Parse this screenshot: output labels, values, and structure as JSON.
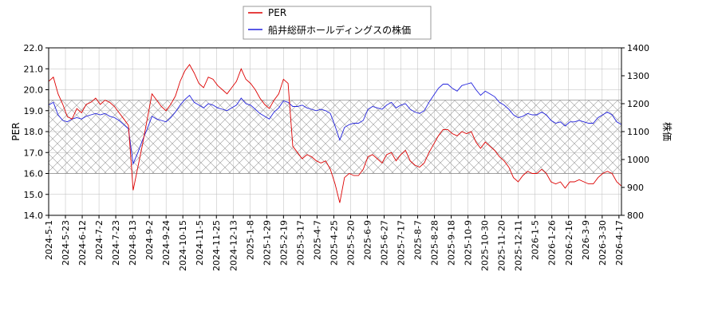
{
  "chart_data": {
    "type": "line",
    "title": "",
    "colors": {
      "per": "#dd0000",
      "price": "#2222dd",
      "grid": "#bbbbbb",
      "band": "#999999"
    },
    "legend": {
      "position": "top-center",
      "entries": [
        "PER",
        "船井総研ホールディングスの株価"
      ]
    },
    "y_left": {
      "label": "PER",
      "range": [
        14.0,
        22.0
      ],
      "ticks": [
        "14.0",
        "15.0",
        "16.0",
        "17.0",
        "18.0",
        "19.0",
        "20.0",
        "21.0",
        "22.0"
      ]
    },
    "y_right": {
      "label": "株価",
      "range": [
        800,
        1400
      ],
      "ticks": [
        "800",
        "900",
        "1000",
        "1100",
        "1200",
        "1300",
        "1400"
      ]
    },
    "grid": true,
    "shaded_band": {
      "axis": "left",
      "range": [
        16.0,
        19.5
      ]
    },
    "x_ticks": [
      "2024-5-1",
      "2024-5-23",
      "2024-6-12",
      "2024-7-2",
      "2024-7-23",
      "2024-8-13",
      "2024-9-2",
      "2024-9-24",
      "2024-10-15",
      "2024-11-5",
      "2024-11-25",
      "2024-12-13",
      "2025-1-8",
      "2025-1-29",
      "2025-2-19",
      "2025-3-17",
      "2025-4-7",
      "2025-4-25",
      "2025-5-20",
      "2025-6-9",
      "2025-6-27",
      "2025-7-17",
      "2025-8-7",
      "2025-8-28",
      "2025-9-18",
      "2025-10-9",
      "2025-10-30",
      "2025-11-20",
      "2025-12-11",
      "2026-1-5",
      "2026-1-26",
      "2026-2-16",
      "2026-3-9",
      "2026-3-30",
      "2026-4-17"
    ],
    "series": [
      {
        "name": "PER",
        "axis": "left",
        "values": [
          20.4,
          20.6,
          19.8,
          19.3,
          18.7,
          18.6,
          19.1,
          18.9,
          19.3,
          19.4,
          19.6,
          19.3,
          19.5,
          19.4,
          19.2,
          18.9,
          18.6,
          18.3,
          15.2,
          16.3,
          17.4,
          18.6,
          19.8,
          19.5,
          19.2,
          19.0,
          19.3,
          19.7,
          20.4,
          20.9,
          21.2,
          20.8,
          20.3,
          20.1,
          20.6,
          20.5,
          20.2,
          20.0,
          19.8,
          20.1,
          20.4,
          21.0,
          20.5,
          20.3,
          20.0,
          19.6,
          19.3,
          19.1,
          19.5,
          19.8,
          20.5,
          20.3,
          17.3,
          17.0,
          16.7,
          16.9,
          16.8,
          16.6,
          16.5,
          16.6,
          16.2,
          15.5,
          14.6,
          15.8,
          16.0,
          15.9,
          15.9,
          16.2,
          16.8,
          16.9,
          16.7,
          16.5,
          16.9,
          17.0,
          16.6,
          16.9,
          17.1,
          16.6,
          16.4,
          16.3,
          16.5,
          17.0,
          17.4,
          17.8,
          18.1,
          18.1,
          17.9,
          17.8,
          18.0,
          17.9,
          18.0,
          17.5,
          17.2,
          17.5,
          17.3,
          17.1,
          16.8,
          16.6,
          16.3,
          15.8,
          15.6,
          15.9,
          16.1,
          16.0,
          16.0,
          16.2,
          16.0,
          15.6,
          15.5,
          15.6,
          15.3,
          15.6,
          15.6,
          15.7,
          15.6,
          15.5,
          15.5,
          15.8,
          16.0,
          16.1,
          16.0,
          15.6,
          15.4
        ]
      },
      {
        "name": "船井総研ホールディングスの株価",
        "axis": "right",
        "values": [
          1195,
          1205,
          1160,
          1140,
          1135,
          1145,
          1150,
          1145,
          1155,
          1160,
          1165,
          1160,
          1165,
          1155,
          1150,
          1140,
          1125,
          1110,
          985,
          1025,
          1070,
          1110,
          1155,
          1145,
          1140,
          1135,
          1150,
          1170,
          1195,
          1215,
          1230,
          1205,
          1195,
          1185,
          1200,
          1195,
          1185,
          1180,
          1175,
          1185,
          1195,
          1220,
          1200,
          1195,
          1180,
          1165,
          1155,
          1145,
          1170,
          1185,
          1210,
          1205,
          1190,
          1190,
          1195,
          1185,
          1180,
          1175,
          1180,
          1175,
          1165,
          1120,
          1070,
          1115,
          1125,
          1130,
          1130,
          1140,
          1180,
          1190,
          1185,
          1180,
          1195,
          1205,
          1185,
          1195,
          1200,
          1180,
          1170,
          1165,
          1175,
          1205,
          1230,
          1255,
          1270,
          1270,
          1255,
          1245,
          1265,
          1270,
          1275,
          1250,
          1230,
          1245,
          1235,
          1225,
          1205,
          1195,
          1180,
          1160,
          1150,
          1155,
          1165,
          1160,
          1160,
          1170,
          1160,
          1140,
          1130,
          1135,
          1120,
          1135,
          1135,
          1140,
          1135,
          1130,
          1130,
          1150,
          1160,
          1170,
          1160,
          1135,
          1125
        ]
      }
    ]
  }
}
